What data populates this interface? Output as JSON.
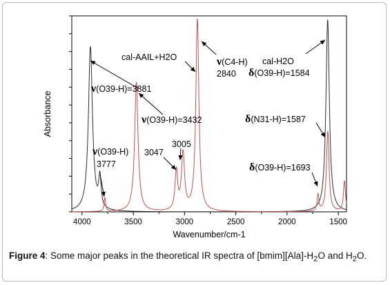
{
  "chart_data": {
    "type": "line",
    "title": "",
    "xlabel": "Wavenumber/cm-1",
    "ylabel": "Absorbance",
    "xlim": [
      4100,
      1420
    ],
    "x_ticks": [
      4000,
      3500,
      3000,
      2500,
      2000,
      1500
    ],
    "x_tick_labels": [
      "4000",
      "3500",
      "3000",
      "2500",
      "2000",
      "1500"
    ],
    "ylim": [
      0,
      1
    ],
    "grid": false,
    "series": [
      {
        "name": "cal-H2O",
        "color": "#2b2b2b",
        "peaks": [
          {
            "x": 3918,
            "y": 0.84,
            "w": 24
          },
          {
            "x": 3826,
            "y": 0.155,
            "w": 14
          },
          {
            "x": 1604,
            "y": 0.98,
            "w": 20
          }
        ]
      },
      {
        "name": "cal-AAIL+H2O",
        "color": "#c0504d",
        "peaks": [
          {
            "x": 3777,
            "y": 0.07,
            "w": 9
          },
          {
            "x": 3470,
            "y": 0.66,
            "w": 20
          },
          {
            "x": 3080,
            "y": 0.2,
            "w": 15
          },
          {
            "x": 3015,
            "y": 0.29,
            "w": 18
          },
          {
            "x": 2875,
            "y": 0.98,
            "w": 18
          },
          {
            "x": 1698,
            "y": 0.085,
            "w": 10
          },
          {
            "x": 1603,
            "y": 0.41,
            "w": 15
          },
          {
            "x": 1440,
            "y": 0.155,
            "w": 12
          }
        ]
      }
    ],
    "annotations": [
      {
        "symbol": "ν",
        "text": "(O39-H)=3881"
      },
      {
        "symbol": "ν",
        "text": "(O39-H)=3432"
      },
      {
        "symbol": "ν",
        "text": "(O39-H)"
      },
      {
        "text": "3777"
      },
      {
        "text": "3047"
      },
      {
        "text": "3005"
      },
      {
        "text": "cal-AAIL+H2O"
      },
      {
        "symbol": "ν",
        "text": "(C4-H)"
      },
      {
        "text": "2840"
      },
      {
        "text": "cal-H2O"
      },
      {
        "symbol": "δ",
        "text": "(O39-H)=1584"
      },
      {
        "symbol": "δ",
        "text": "(N31-H)=1587"
      },
      {
        "symbol": "δ",
        "text": "(O39-H)=1693"
      }
    ]
  },
  "caption": {
    "label": "Figure 4",
    "text_before_sub1": ": Some major peaks in the theoretical IR spectra of [bmim][Ala]-H",
    "sub1": "2",
    "text_mid": "O and H",
    "sub2": "2",
    "text_end": "O."
  }
}
